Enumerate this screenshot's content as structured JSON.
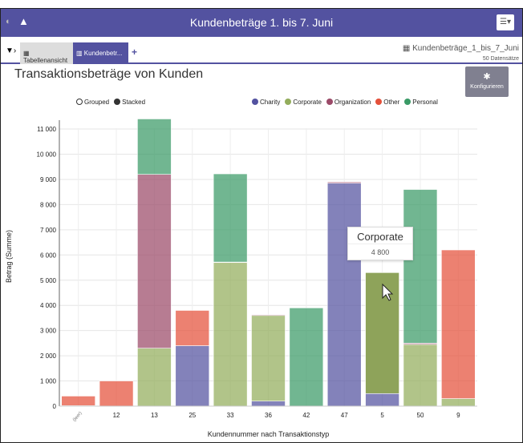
{
  "header": {
    "title": "Kundenbeträge 1. bis 7. Juni",
    "menu_icon": "hamburger-icon"
  },
  "tabs": [
    {
      "label": "Tabellenansicht"
    },
    {
      "label": "Kundenbetr..."
    }
  ],
  "dataset": {
    "name": "Kundenbeträge_1_bis_7_Juni",
    "count": "50 Datensätze"
  },
  "configure_label": "Konfigurieren",
  "mode": {
    "grouped": "Grouped",
    "stacked": "Stacked",
    "selected": "Stacked"
  },
  "tooltip": {
    "title": "Corporate",
    "value": "4 800"
  },
  "chart_data": {
    "type": "bar",
    "stacked": true,
    "title": "Transaktionsbeträge von Kunden",
    "xlabel": "Kundennummer nach Transaktionstyp",
    "ylabel": "Betrag (Summe)",
    "ylim": [
      0,
      11400
    ],
    "yticks": [
      "0",
      "1 000",
      "2 000",
      "3 000",
      "4 000",
      "5 000",
      "6 000",
      "7 000",
      "8 000",
      "9 000",
      "10 000",
      "11 000"
    ],
    "grid": true,
    "legend": "top-right",
    "categories": [
      "(leer)",
      "12",
      "13",
      "25",
      "33",
      "36",
      "42",
      "47",
      "5",
      "50",
      "9"
    ],
    "series": [
      {
        "name": "Charity",
        "color": "#5352a0",
        "values": [
          0,
          0,
          0,
          2400,
          0,
          200,
          0,
          8850,
          500,
          0,
          0
        ]
      },
      {
        "name": "Corporate",
        "color": "#93ad5c",
        "values": [
          20,
          0,
          2300,
          0,
          5700,
          3400,
          0,
          0,
          4800,
          2450,
          300
        ]
      },
      {
        "name": "Organization",
        "color": "#9b4a68",
        "values": [
          0,
          0,
          6900,
          0,
          0,
          30,
          0,
          50,
          0,
          50,
          0
        ]
      },
      {
        "name": "Other",
        "color": "#e4503a",
        "values": [
          380,
          1000,
          0,
          1400,
          20,
          0,
          0,
          0,
          0,
          0,
          5900
        ]
      },
      {
        "name": "Personal",
        "color": "#3a9a66",
        "values": [
          0,
          0,
          2200,
          0,
          3500,
          0,
          3900,
          0,
          0,
          6100,
          0
        ]
      }
    ]
  }
}
